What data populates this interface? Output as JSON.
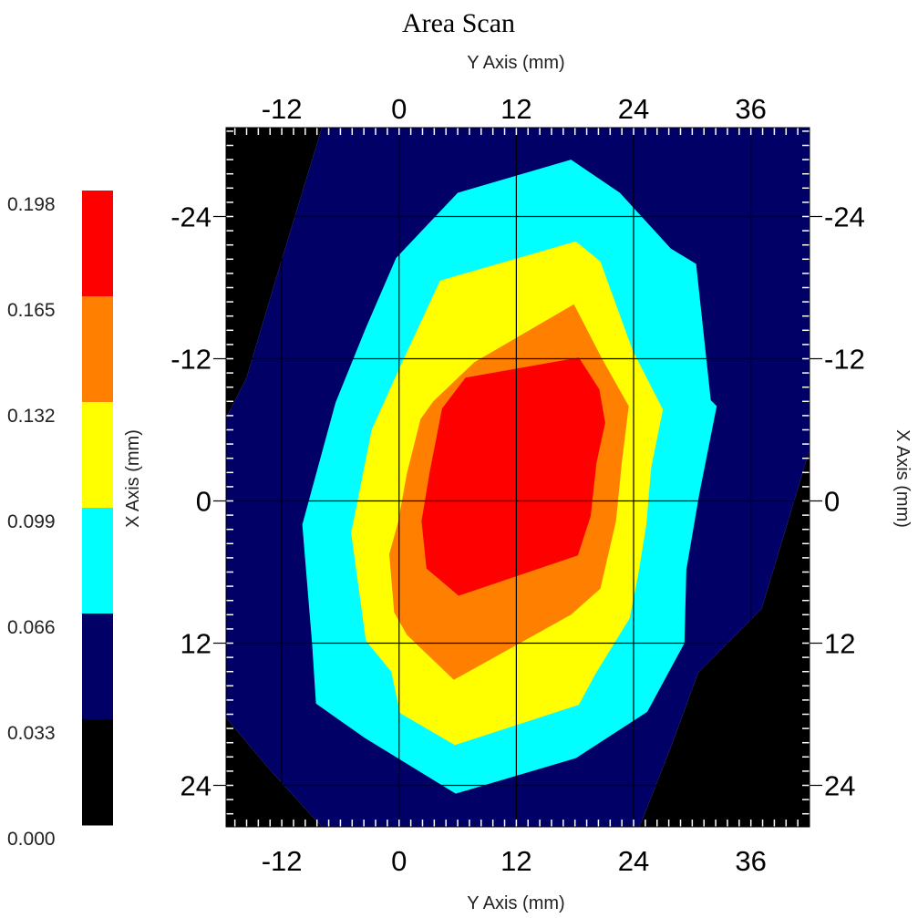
{
  "chart_data": {
    "type": "heatmap",
    "title": "Area Scan",
    "xlabel_top": "Y Axis (mm)",
    "xlabel_bottom": "Y Axis (mm)",
    "ylabel_left": "X Axis (mm)",
    "ylabel_right": "X Axis (mm)",
    "x_ticks": [
      "-12",
      "0",
      "12",
      "24",
      "36"
    ],
    "x_tick_values": [
      -12,
      0,
      12,
      24,
      36
    ],
    "y_ticks": [
      "-24",
      "-12",
      "0",
      "12",
      "24"
    ],
    "y_tick_values": [
      -24,
      -12,
      0,
      12,
      24
    ],
    "xlim": [
      -17.7,
      42
    ],
    "ylim": [
      -31.5,
      27.5
    ],
    "y_inverted": true,
    "grid": true,
    "colorbar": {
      "labels": [
        "0.198",
        "0.165",
        "0.132",
        "0.099",
        "0.066",
        "0.033",
        "0.000"
      ],
      "levels": [
        {
          "min": 0.0,
          "max": 0.033,
          "color": "#000000"
        },
        {
          "min": 0.033,
          "max": 0.066,
          "color": "#000066"
        },
        {
          "min": 0.066,
          "max": 0.099,
          "color": "#00ffff"
        },
        {
          "min": 0.099,
          "max": 0.132,
          "color": "#ffff00"
        },
        {
          "min": 0.132,
          "max": 0.165,
          "color": "#ff8000"
        },
        {
          "min": 0.165,
          "max": 0.198,
          "color": "#ff0000"
        }
      ]
    },
    "contours": [
      {
        "name": "0.000-0.033",
        "color": "#000000",
        "polygons": [
          [
            [
              -17.7,
              -31.5
            ],
            [
              -7.9,
              -31.5
            ],
            [
              -12.5,
              -19
            ],
            [
              -15.6,
              -10.4
            ],
            [
              -17.7,
              -7
            ]
          ],
          [
            [
              -17.7,
              18.3
            ],
            [
              -13.1,
              22.8
            ],
            [
              -7.9,
              27.5
            ],
            [
              -17.7,
              27.5
            ]
          ],
          [
            [
              42,
              -4.3
            ],
            [
              42,
              27.5
            ],
            [
              24.6,
              27.5
            ],
            [
              27.9,
              20.6
            ],
            [
              30.6,
              14.5
            ],
            [
              37.1,
              9.1
            ]
          ]
        ]
      },
      {
        "name": "0.033-0.066",
        "color": "#000066",
        "polygons": [
          [
            [
              -7.9,
              -31.5
            ],
            [
              42,
              -31.5
            ],
            [
              42,
              -4.3
            ],
            [
              37.1,
              9.1
            ],
            [
              30.6,
              14.5
            ],
            [
              27.9,
              20.6
            ],
            [
              24.6,
              27.5
            ],
            [
              -7.9,
              27.5
            ],
            [
              -13.1,
              22.8
            ],
            [
              -17.7,
              18.3
            ],
            [
              -17.7,
              -7
            ],
            [
              -15.6,
              -10.4
            ],
            [
              -12.5,
              -19
            ]
          ]
        ]
      },
      {
        "name": "0.066-0.099",
        "color": "#00ffff",
        "polygons": [
          [
            [
              17.6,
              -28.8
            ],
            [
              22.6,
              -26
            ],
            [
              27.8,
              -21.3
            ],
            [
              30.4,
              -20
            ],
            [
              31.9,
              -8.5
            ],
            [
              32.5,
              -8
            ],
            [
              30.7,
              -0.5
            ],
            [
              29.4,
              5.8
            ],
            [
              29.2,
              12
            ],
            [
              25.4,
              17.8
            ],
            [
              18.1,
              21.7
            ],
            [
              5.8,
              24.7
            ],
            [
              -3.5,
              20
            ],
            [
              -8.5,
              17.1
            ],
            [
              -8.9,
              12
            ],
            [
              -9.9,
              2
            ],
            [
              -6.5,
              -8.3
            ],
            [
              -3.4,
              -14.6
            ],
            [
              -0.3,
              -20.5
            ],
            [
              6,
              -26
            ]
          ]
        ]
      },
      {
        "name": "0.099-0.132",
        "color": "#ffff00",
        "polygons": [
          [
            [
              18.1,
              -21.9
            ],
            [
              20.6,
              -20.2
            ],
            [
              23.9,
              -12.7
            ],
            [
              27,
              -7.7
            ],
            [
              25.8,
              -2.8
            ],
            [
              25.3,
              2
            ],
            [
              24.5,
              6.1
            ],
            [
              23.6,
              9.9
            ],
            [
              20.1,
              14.6
            ],
            [
              18.4,
              17.2
            ],
            [
              5.7,
              20.6
            ],
            [
              0.1,
              17.9
            ],
            [
              -0.8,
              14.4
            ],
            [
              -3.4,
              11.8
            ],
            [
              -4.9,
              2.7
            ],
            [
              -2.8,
              -6
            ],
            [
              0.2,
              -11.5
            ],
            [
              4.2,
              -18.6
            ]
          ]
        ]
      },
      {
        "name": "0.132-0.165",
        "color": "#ff8000",
        "polygons": [
          [
            [
              17.9,
              -16.6
            ],
            [
              20.7,
              -12.1
            ],
            [
              23.5,
              -8
            ],
            [
              22.8,
              -3.3
            ],
            [
              22.2,
              1.7
            ],
            [
              20.6,
              7.4
            ],
            [
              17.6,
              9.6
            ],
            [
              5.6,
              15.1
            ],
            [
              0.8,
              11.3
            ],
            [
              -0.5,
              9.4
            ],
            [
              -1,
              4.5
            ],
            [
              -0.1,
              1.8
            ],
            [
              0.8,
              -2.3
            ],
            [
              2.2,
              -6.9
            ],
            [
              3.5,
              -8.4
            ],
            [
              7.7,
              -11.7
            ]
          ]
        ]
      },
      {
        "name": "0.165-0.198",
        "color": "#ff0000",
        "polygons": [
          [
            [
              18.4,
              -12.1
            ],
            [
              20.5,
              -9.4
            ],
            [
              21.1,
              -6.6
            ],
            [
              20.2,
              -3.2
            ],
            [
              19.6,
              1.3
            ],
            [
              18.3,
              4.6
            ],
            [
              6.1,
              8
            ],
            [
              2.8,
              5.7
            ],
            [
              2.3,
              1.7
            ],
            [
              3.1,
              -2.3
            ],
            [
              4.4,
              -7.8
            ],
            [
              6.8,
              -10.4
            ]
          ]
        ]
      }
    ]
  }
}
